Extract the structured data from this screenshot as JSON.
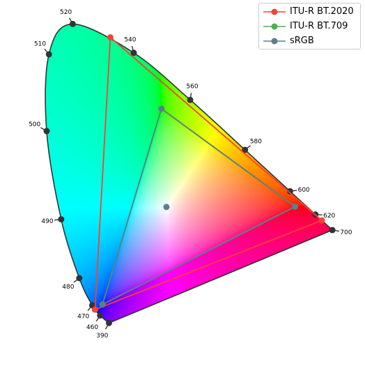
{
  "chart_data": {
    "type": "scatter",
    "title": "",
    "xlabel": "",
    "ylabel": "",
    "axes_visible": false,
    "grid": false,
    "legend_placement": "top-right",
    "xlim": [
      -0.1,
      0.8
    ],
    "ylim": [
      -0.1,
      0.9
    ],
    "spectral_locus": {
      "line_color": "#333333",
      "wavelengths_nm": [
        390,
        460,
        470,
        480,
        490,
        500,
        510,
        520,
        540,
        560,
        580,
        600,
        620,
        700
      ],
      "x": [
        0.1666,
        0.144,
        0.124,
        0.091,
        0.045,
        0.008,
        0.0139,
        0.0743,
        0.2296,
        0.3731,
        0.5125,
        0.627,
        0.6915,
        0.7347
      ],
      "y": [
        0.0089,
        0.0297,
        0.0578,
        0.1327,
        0.295,
        0.5384,
        0.7502,
        0.8338,
        0.7543,
        0.6245,
        0.4866,
        0.3725,
        0.3083,
        0.2653
      ],
      "labels": [
        "390",
        "460",
        "470",
        "480",
        "490",
        "500",
        "510",
        "520",
        "540",
        "560",
        "580",
        "600",
        "620",
        "700"
      ]
    },
    "series": [
      {
        "name": "ITU-R BT.2020",
        "color": "#f44336",
        "x": [
          0.708,
          0.17,
          0.131,
          0.708
        ],
        "y": [
          0.292,
          0.797,
          0.046,
          0.292
        ]
      },
      {
        "name": "ITU-R BT.709",
        "color": "#4caf50",
        "x": [
          0.64,
          0.3,
          0.15,
          0.64
        ],
        "y": [
          0.33,
          0.6,
          0.06,
          0.33
        ]
      },
      {
        "name": "sRGB",
        "color": "#607d8b",
        "x": [
          0.64,
          0.3,
          0.15,
          0.64
        ],
        "y": [
          0.33,
          0.6,
          0.06,
          0.33
        ]
      }
    ],
    "whitepoint": {
      "x": 0.3127,
      "y": 0.329,
      "color": "#607d8b"
    }
  },
  "legend": {
    "items": [
      {
        "label": "ITU-R BT.2020"
      },
      {
        "label": "ITU-R BT.709"
      },
      {
        "label": "sRGB"
      }
    ]
  }
}
